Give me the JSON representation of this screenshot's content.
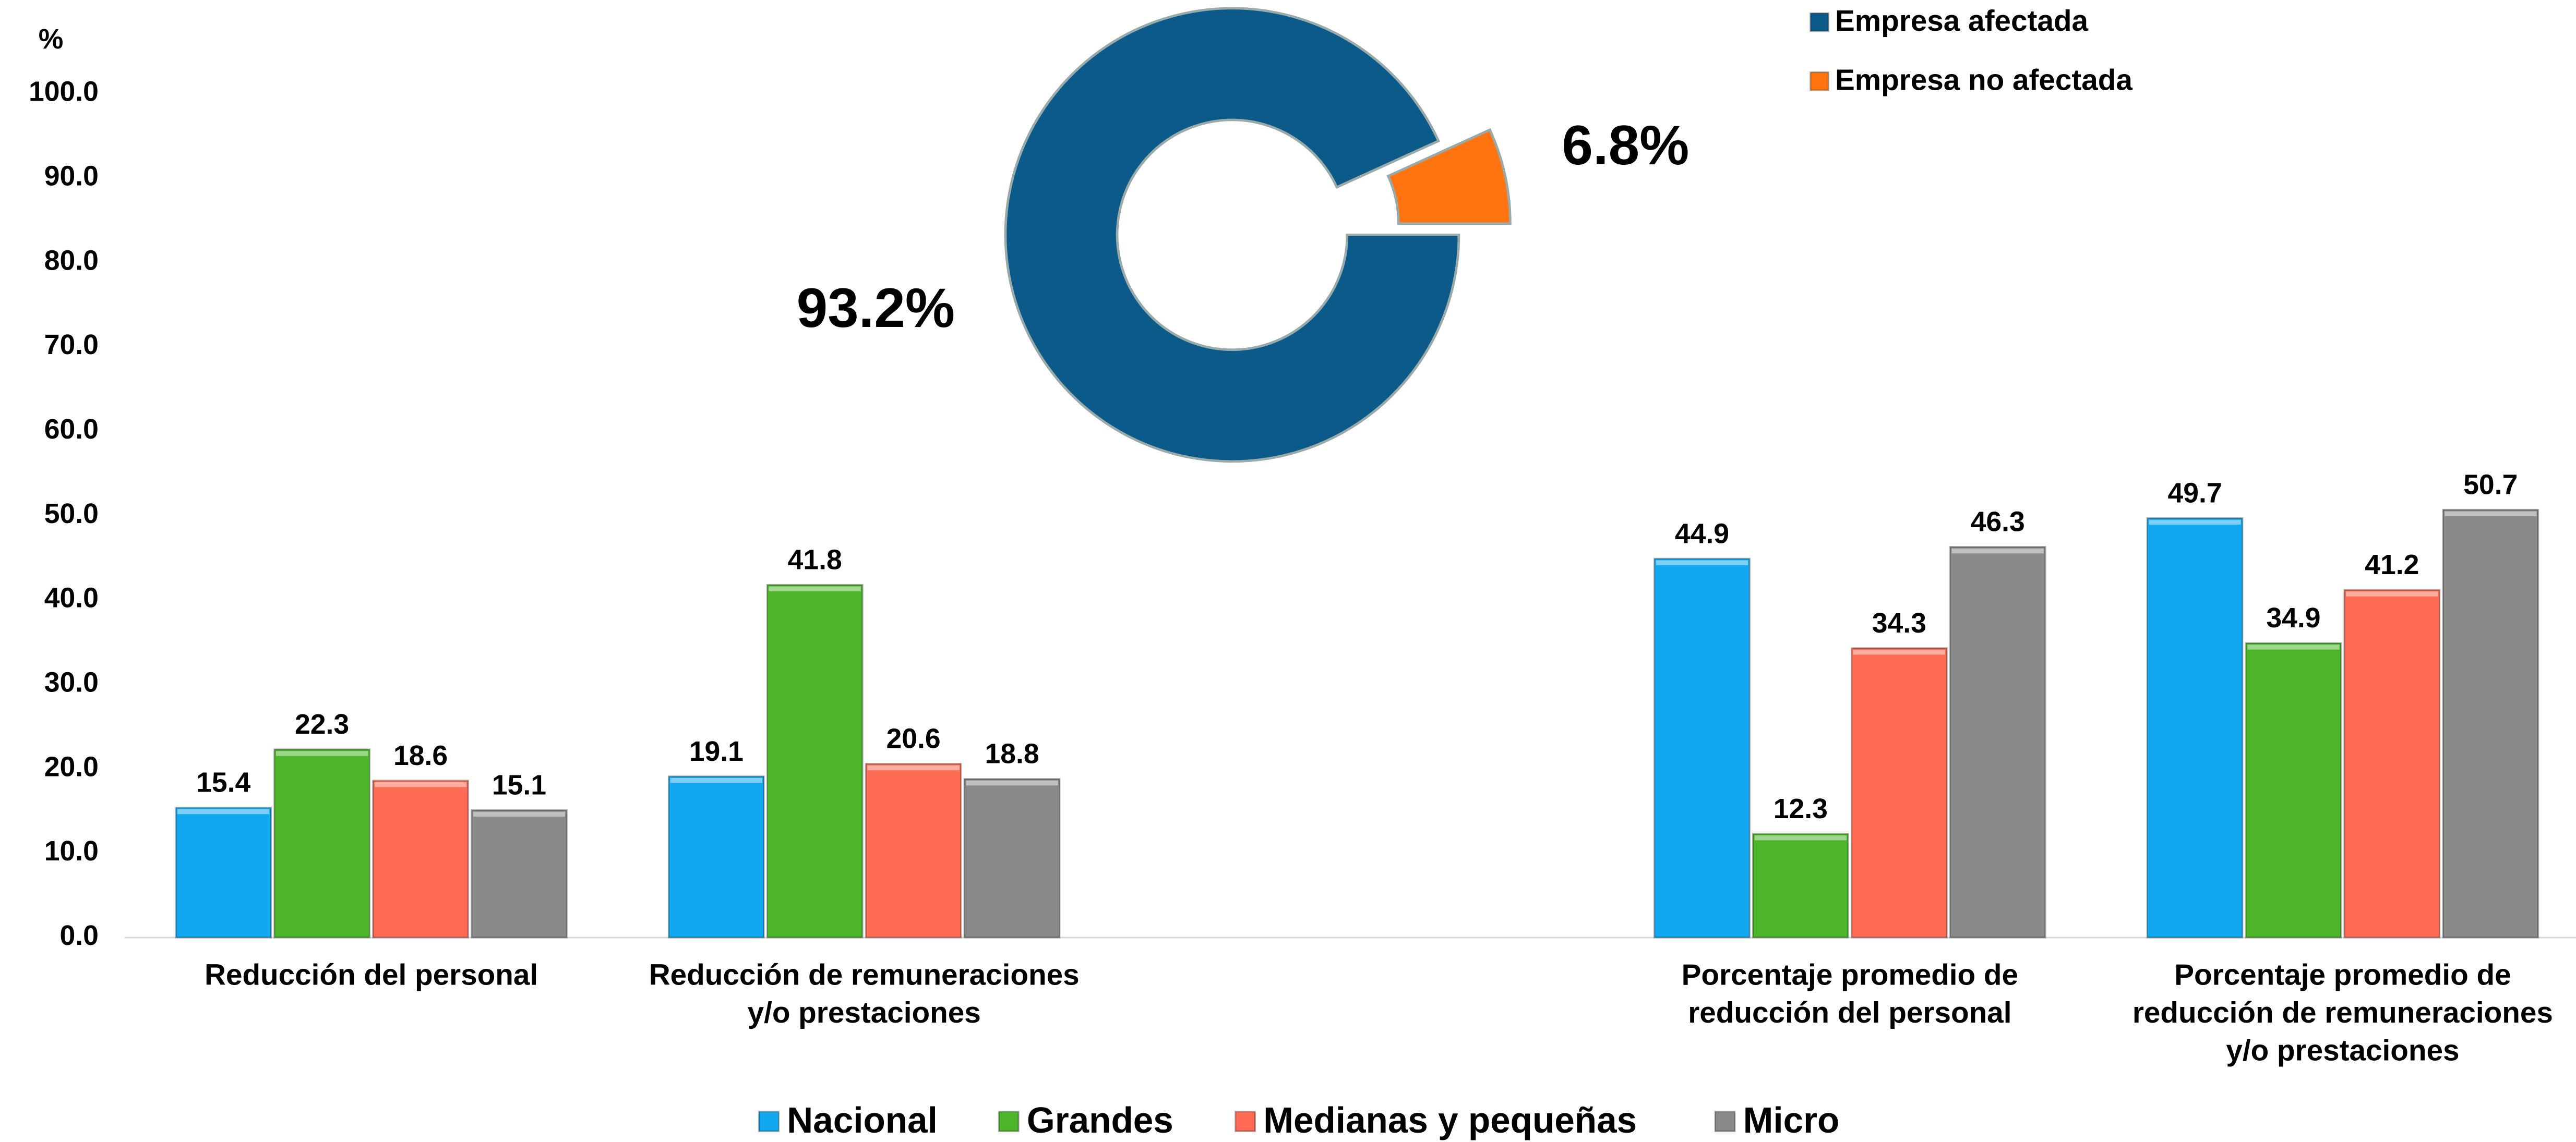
{
  "chart_data": [
    {
      "type": "bar",
      "ylabel": "%",
      "categories": [
        "Reducción del personal",
        "Reducción de remuneraciones\ny/o prestaciones",
        "Porcentaje promedio de\nreducción del personal",
        "Porcentaje promedio de\nreducción de remuneraciones\ny/o prestaciones"
      ],
      "series": [
        {
          "name": "Nacional",
          "color": "#12a8f0",
          "values": [
            15.4,
            19.1,
            44.9,
            49.7
          ]
        },
        {
          "name": "Grandes",
          "color": "#4cb52a",
          "values": [
            22.3,
            41.8,
            12.3,
            34.9
          ]
        },
        {
          "name": "Medianas y pequeñas",
          "color": "#ff6b55",
          "values": [
            18.6,
            20.6,
            34.3,
            41.2
          ]
        },
        {
          "name": "Micro",
          "color": "#8a8a8a",
          "values": [
            15.1,
            18.8,
            46.3,
            50.7
          ]
        }
      ],
      "ylim": [
        0,
        100
      ],
      "yticks": [
        {
          "value": 0,
          "label": "0.0"
        },
        {
          "value": 10,
          "label": "10.0"
        },
        {
          "value": 20,
          "label": "20.0"
        },
        {
          "value": 30,
          "label": "30.0"
        },
        {
          "value": 40,
          "label": "40.0"
        },
        {
          "value": 50,
          "label": "50.0"
        },
        {
          "value": 60,
          "label": "60.0"
        },
        {
          "value": 70,
          "label": "70.0"
        },
        {
          "value": 80,
          "label": "80.0"
        },
        {
          "value": 90,
          "label": "90.0"
        },
        {
          "value": 100,
          "label": "100.0"
        }
      ],
      "legend": "bottom"
    },
    {
      "type": "pie",
      "categories": [
        "Empresa afectada",
        "Empresa no afectada"
      ],
      "values": [
        93.2,
        6.8
      ],
      "value_labels": [
        "93.2%",
        "6.8%"
      ],
      "colors": [
        "#0b5a8a",
        "#ff7410"
      ],
      "legend": "top right"
    }
  ]
}
